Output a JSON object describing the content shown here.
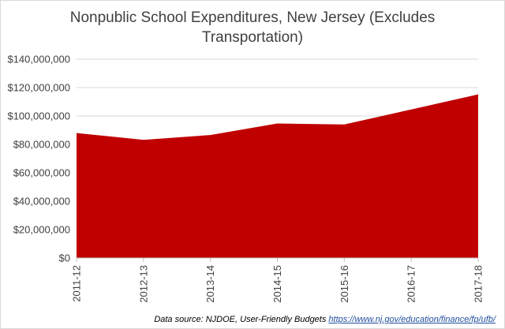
{
  "chart_data": {
    "type": "area",
    "title": "Nonpublic School Expenditures, New Jersey (Excludes Transportation)",
    "title_lines": [
      "Nonpublic School Expenditures, New Jersey (Excludes",
      "Transportation)"
    ],
    "categories": [
      "2011-12",
      "2012-13",
      "2013-14",
      "2014-15",
      "2015-16",
      "2016-17",
      "2017-18"
    ],
    "series": [
      {
        "values": [
          88000000,
          83200000,
          86600000,
          94700000,
          94000000,
          104600000,
          115200000
        ]
      }
    ],
    "ylim": [
      0,
      140000000
    ],
    "yticks": [
      0,
      20000000,
      40000000,
      60000000,
      80000000,
      100000000,
      120000000,
      140000000
    ],
    "ytick_labels": [
      "$0",
      "$20,000,000",
      "$40,000,000",
      "$60,000,000",
      "$80,000,000",
      "$100,000,000",
      "$120,000,000",
      "$140,000,000"
    ],
    "grid": true,
    "legend": "none",
    "colors": {
      "fill": "#c00000",
      "grid": "#d9d9d9",
      "axis": "#bfbfbf",
      "text": "#404040"
    }
  },
  "source": {
    "prefix": "Data source: NJDOE, User-Friendly Budgets ",
    "link": "https://www.nj.gov/education/finance/fp/ufb/"
  }
}
